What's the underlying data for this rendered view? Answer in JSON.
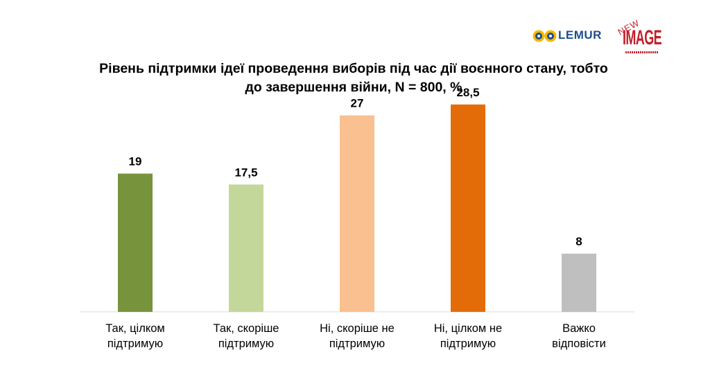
{
  "logos": {
    "lemur": "LEMUR",
    "new": "NEW",
    "image": "IMAGE"
  },
  "chart_data": {
    "type": "bar",
    "title": "Рівень підтримки ідеї проведення виборів під час дії воєнного стану, тобто до завершення війни, N = 800, %",
    "title_lines": [
      "Рівень підтримки ідеї проведення виборів під час дії воєнного стану, тобто",
      "до завершення війни, N = 800, %"
    ],
    "categories": [
      [
        "Так, цілком",
        "підтримую"
      ],
      [
        "Так, скоріше",
        "підтримую"
      ],
      [
        "Ні, скоріше не",
        "підтримую"
      ],
      [
        "Ні, цілком не",
        "підтримую"
      ],
      [
        "Важко",
        "відповісти"
      ]
    ],
    "values": [
      19,
      17.5,
      27,
      28.5,
      8
    ],
    "value_labels": [
      "19",
      "17,5",
      "27",
      "28,5",
      "8"
    ],
    "colors": [
      "#77933c",
      "#c4d79b",
      "#fac090",
      "#e36c09",
      "#bfbfbf"
    ],
    "ylim": [
      0,
      30
    ],
    "grid": false,
    "legend": false
  }
}
